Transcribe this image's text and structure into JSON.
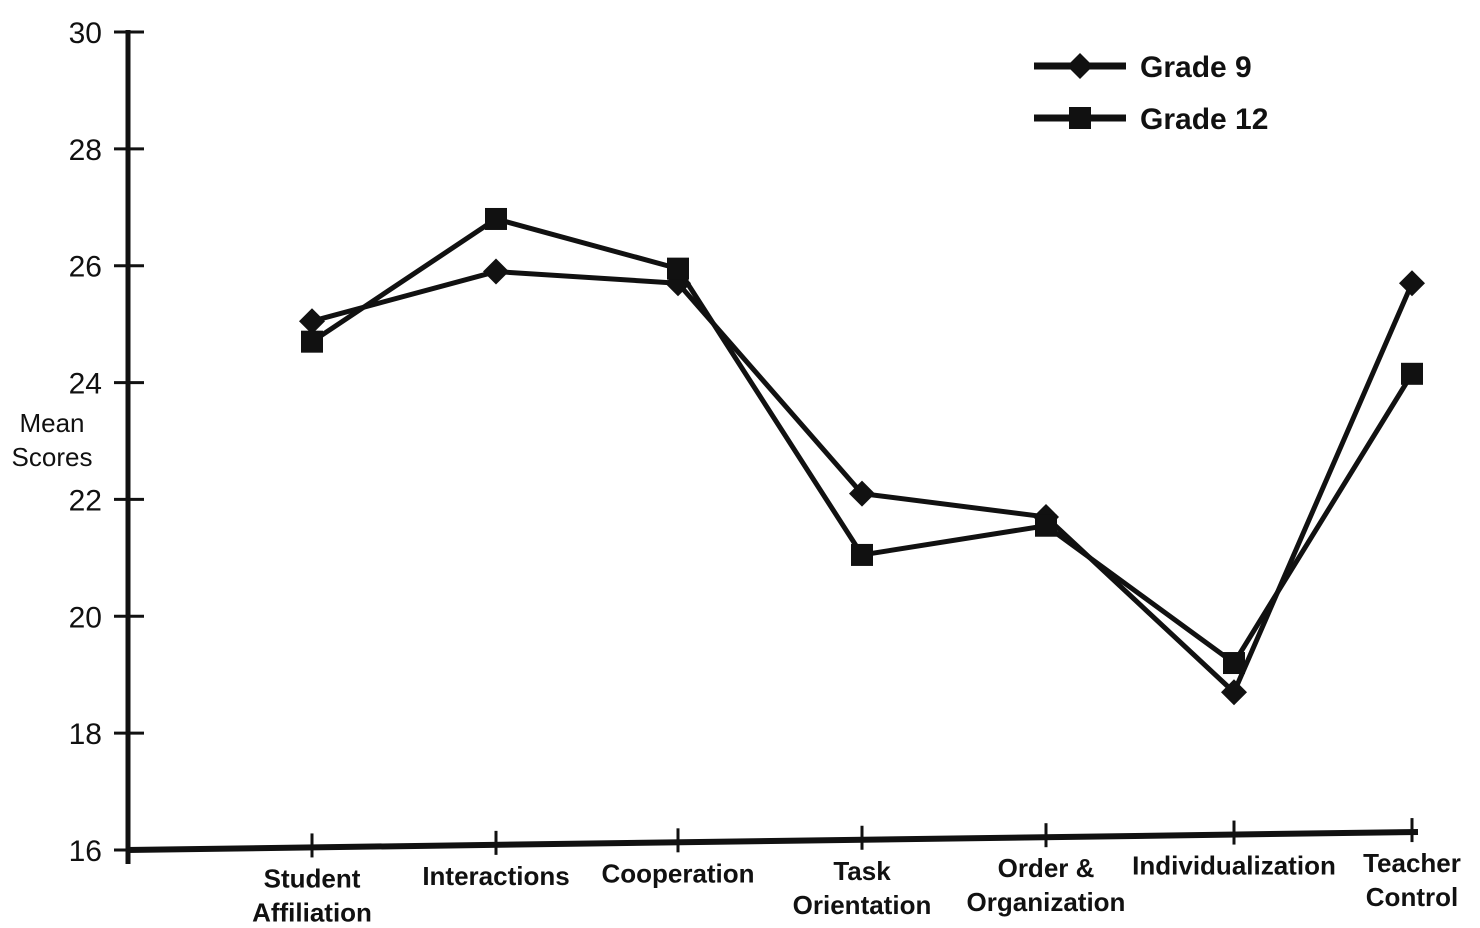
{
  "chart_data": {
    "type": "line",
    "title": "",
    "xlabel": "",
    "ylabel": "Mean Scores",
    "ylabel_lines": [
      "Mean",
      "Scores"
    ],
    "ylim": [
      16,
      30
    ],
    "yticks": [
      16,
      18,
      20,
      22,
      24,
      26,
      28,
      30
    ],
    "categories": [
      [
        "Student",
        "Affiliation"
      ],
      [
        "Interactions"
      ],
      [
        "Cooperation"
      ],
      [
        "Task",
        "Orientation"
      ],
      [
        "Order &",
        "Organization"
      ],
      [
        "Individualization"
      ],
      [
        "Teacher",
        "Control"
      ]
    ],
    "series": [
      {
        "name": "Grade 9",
        "marker": "diamond",
        "values": [
          25.05,
          25.9,
          25.7,
          22.1,
          21.7,
          18.7,
          25.7
        ]
      },
      {
        "name": "Grade 12",
        "marker": "square",
        "values": [
          24.7,
          26.8,
          25.95,
          21.05,
          21.55,
          19.2,
          24.15
        ]
      }
    ],
    "legend_position": "top-right",
    "grid": false,
    "line_color": "#111111"
  }
}
